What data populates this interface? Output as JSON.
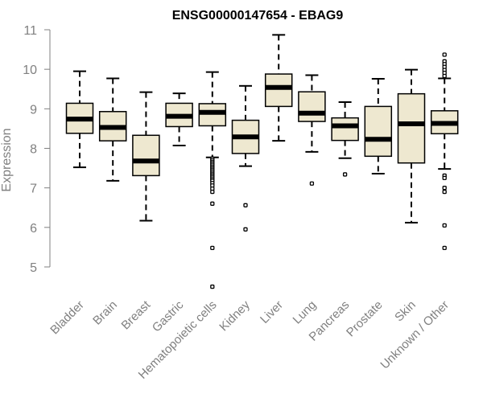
{
  "chart_data": {
    "type": "boxplot",
    "title": "ENSG00000147654 - EBAG9",
    "xlabel": "",
    "ylabel": "Expression",
    "ylim": [
      4.3,
      11.1
    ],
    "yticks": [
      5,
      6,
      7,
      8,
      9,
      10,
      11
    ],
    "grid": false,
    "box_color": "#EEE8D0",
    "outline_color": "#000000",
    "axis_color": "#808080",
    "categories": [
      "Bladder",
      "Brain",
      "Breast",
      "Gastric",
      "Hematopoietic cells",
      "Kidney",
      "Liver",
      "Lung",
      "Pancreas",
      "Prostate",
      "Skin",
      "Unknown / Other"
    ],
    "boxes": [
      {
        "whisker_low": 7.52,
        "q1": 8.38,
        "median": 8.74,
        "q3": 9.14,
        "whisker_high": 9.95,
        "outliers": []
      },
      {
        "whisker_low": 7.18,
        "q1": 8.19,
        "median": 8.53,
        "q3": 8.93,
        "whisker_high": 9.77,
        "outliers": []
      },
      {
        "whisker_low": 6.17,
        "q1": 7.31,
        "median": 7.68,
        "q3": 8.33,
        "whisker_high": 9.42,
        "outliers": []
      },
      {
        "whisker_low": 8.07,
        "q1": 8.55,
        "median": 8.81,
        "q3": 9.14,
        "whisker_high": 9.39,
        "outliers": []
      },
      {
        "whisker_low": 7.77,
        "q1": 8.57,
        "median": 8.91,
        "q3": 9.13,
        "whisker_high": 9.93,
        "outliers": [
          7.74,
          7.7,
          7.66,
          7.62,
          7.58,
          7.54,
          7.5,
          7.46,
          7.42,
          7.38,
          7.34,
          7.3,
          7.26,
          7.22,
          7.18,
          7.12,
          7.06,
          6.98,
          6.9,
          6.6,
          5.48,
          4.5
        ]
      },
      {
        "whisker_low": 7.55,
        "q1": 7.87,
        "median": 8.29,
        "q3": 8.71,
        "whisker_high": 9.58,
        "outliers": [
          6.56,
          5.95
        ]
      },
      {
        "whisker_low": 8.19,
        "q1": 9.06,
        "median": 9.54,
        "q3": 9.88,
        "whisker_high": 10.87,
        "outliers": []
      },
      {
        "whisker_low": 7.91,
        "q1": 8.68,
        "median": 8.89,
        "q3": 9.43,
        "whisker_high": 9.85,
        "outliers": [
          7.11
        ]
      },
      {
        "whisker_low": 7.75,
        "q1": 8.2,
        "median": 8.57,
        "q3": 8.77,
        "whisker_high": 9.17,
        "outliers": [
          7.34
        ]
      },
      {
        "whisker_low": 7.36,
        "q1": 7.8,
        "median": 8.23,
        "q3": 9.06,
        "whisker_high": 9.76,
        "outliers": []
      },
      {
        "whisker_low": 6.12,
        "q1": 7.63,
        "median": 8.62,
        "q3": 9.38,
        "whisker_high": 9.99,
        "outliers": []
      },
      {
        "whisker_low": 7.48,
        "q1": 8.37,
        "median": 8.63,
        "q3": 8.95,
        "whisker_high": 9.77,
        "outliers": [
          10.37,
          10.2,
          10.13,
          10.06,
          9.98,
          9.91,
          9.83,
          7.31,
          7.25,
          7.0,
          6.9,
          6.05,
          5.48
        ]
      }
    ]
  }
}
